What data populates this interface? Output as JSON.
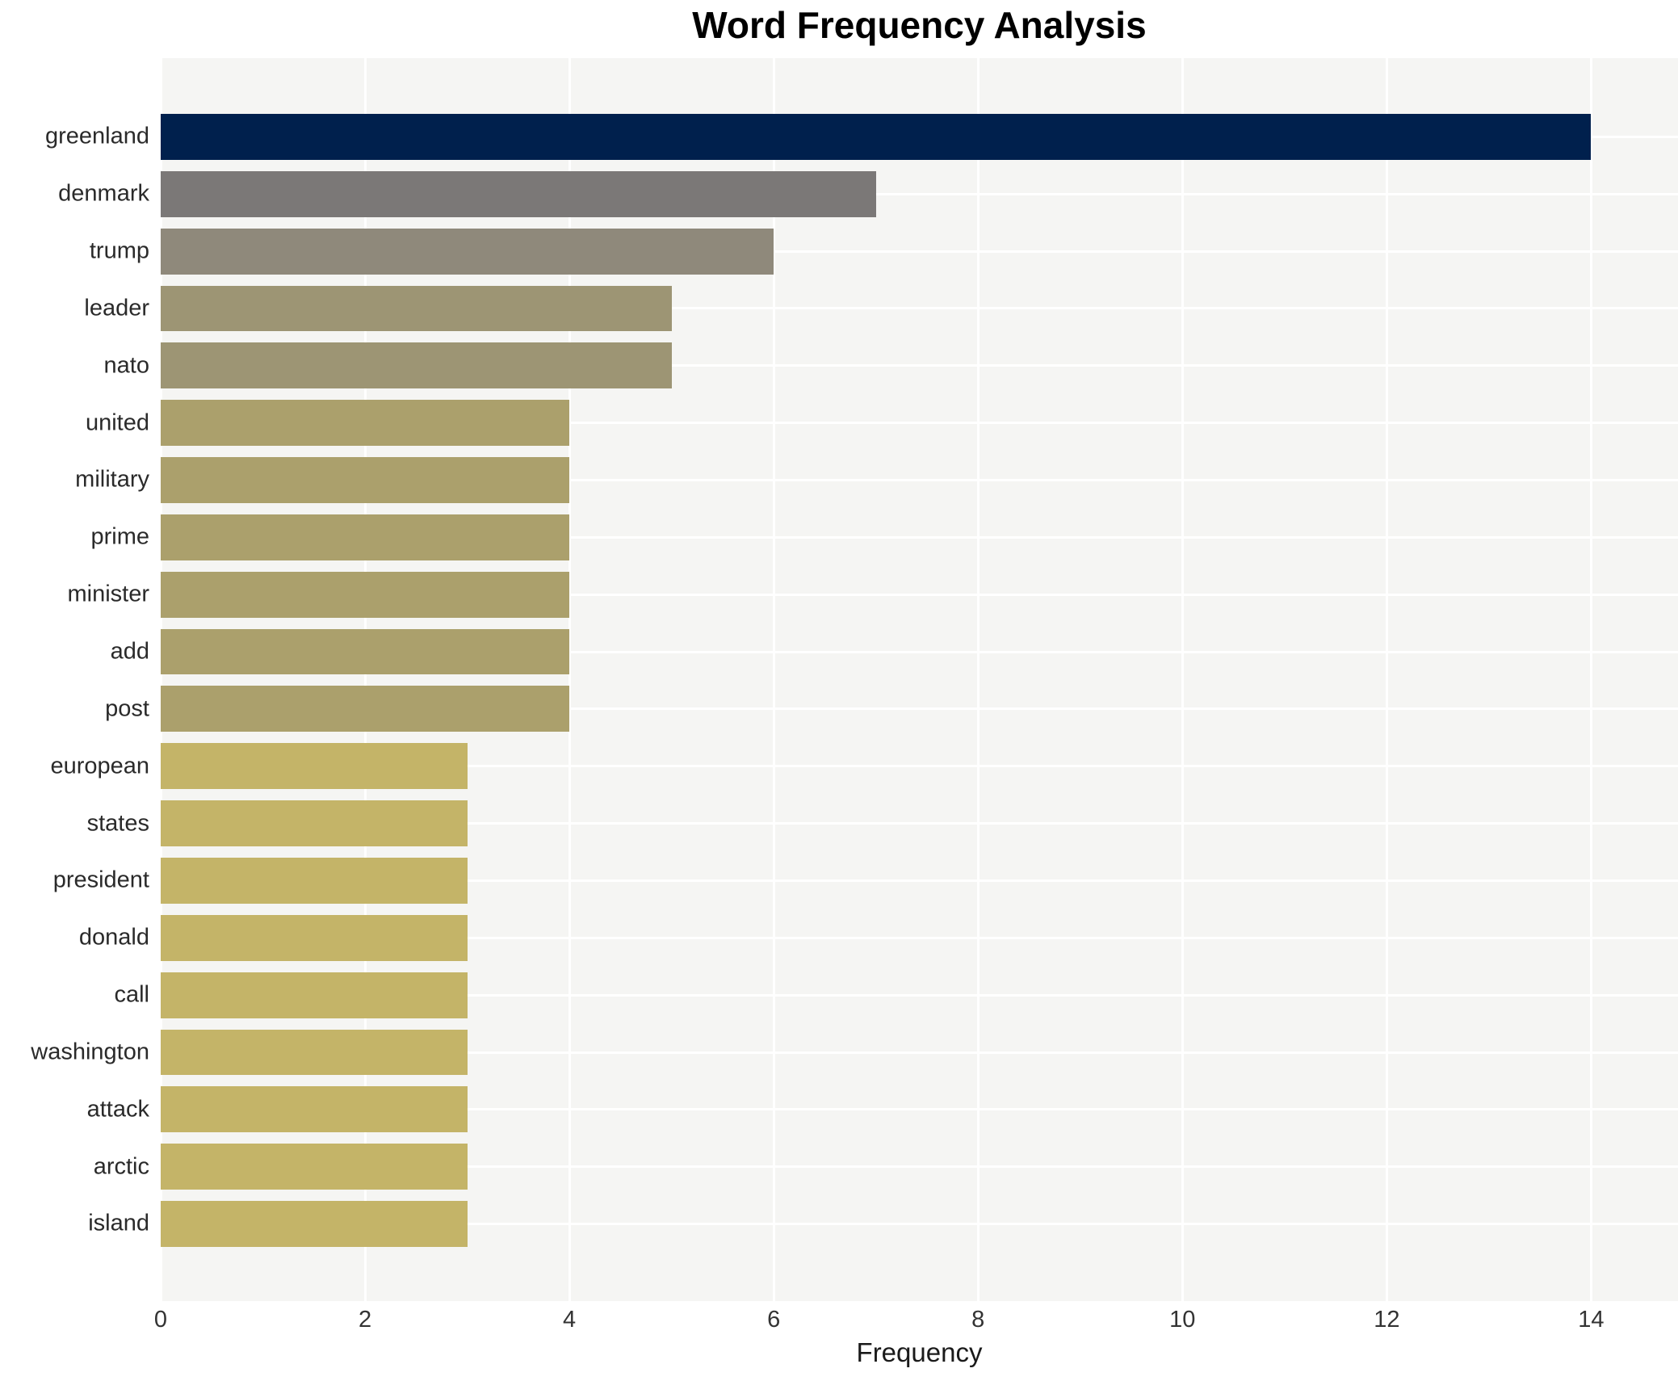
{
  "chart_data": {
    "type": "bar",
    "orientation": "horizontal",
    "title": "Word Frequency Analysis",
    "xlabel": "Frequency",
    "ylabel": "",
    "categories": [
      "greenland",
      "denmark",
      "trump",
      "leader",
      "nato",
      "united",
      "military",
      "prime",
      "minister",
      "add",
      "post",
      "european",
      "states",
      "president",
      "donald",
      "call",
      "washington",
      "attack",
      "arctic",
      "island"
    ],
    "values": [
      14,
      7,
      6,
      5,
      5,
      4,
      4,
      4,
      4,
      4,
      4,
      3,
      3,
      3,
      3,
      3,
      3,
      3,
      3,
      3
    ],
    "xticks": [
      0,
      2,
      4,
      6,
      8,
      10,
      12,
      14
    ],
    "xlim": [
      0,
      14.85
    ],
    "grid": true,
    "legend": false,
    "bar_colors": [
      "#00204d",
      "#7b7877",
      "#8f897b",
      "#9d9574",
      "#9d9574",
      "#aba06c",
      "#aba06c",
      "#aba06c",
      "#aba06c",
      "#aba06c",
      "#aba06c",
      "#c4b468",
      "#c4b468",
      "#c4b468",
      "#c4b468",
      "#c4b468",
      "#c4b468",
      "#c4b468",
      "#c4b468",
      "#c4b468"
    ],
    "colors": {
      "page_background": "#ffffff",
      "plot_background": "#f5f5f3",
      "gridline": "#ffffff",
      "title_text": "#000000",
      "tick_text": "#333333",
      "label_text": "#2a2a2a"
    }
  }
}
